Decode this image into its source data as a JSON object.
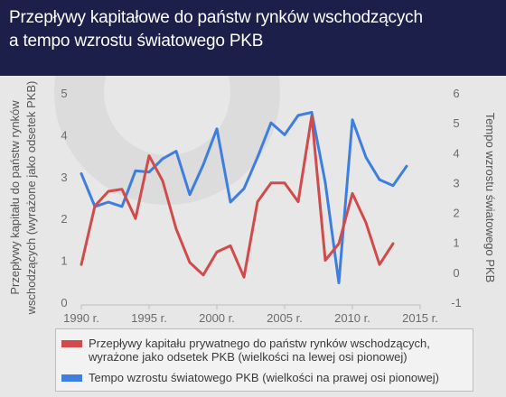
{
  "title": {
    "line1": "Przepływy kapitałowe do państw rynków wschodzących",
    "line2": "a tempo wzrostu światowego PKB"
  },
  "colors": {
    "header_bg": "#1b1f4a",
    "capital": "#d24b4b",
    "gdp": "#3d7ee0"
  },
  "chart_data": {
    "type": "line",
    "x": [
      1990,
      1991,
      1992,
      1993,
      1994,
      1995,
      1996,
      1997,
      1998,
      1999,
      2000,
      2001,
      2002,
      2003,
      2004,
      2005,
      2006,
      2007,
      2008,
      2009,
      2010,
      2011,
      2012,
      2013,
      2014
    ],
    "x_ticks": [
      1990,
      1995,
      2000,
      2005,
      2010,
      2015
    ],
    "x_tick_labels": [
      "1990 r.",
      "1995  r.",
      "2000 r.",
      "2005 r.",
      "2010 r.",
      "2015 r."
    ],
    "xlim": [
      1990,
      2015
    ],
    "left_axis": {
      "label": "Przepływy kapitału do państw rynków wschodzących (wyrażone jako odsetek PKB)",
      "ylim": [
        0,
        5
      ],
      "ticks": [
        "0",
        "1",
        "2",
        "3",
        "4",
        "5"
      ]
    },
    "right_axis": {
      "label": "Tempo wzrostu światowego PKB",
      "ylim": [
        -1,
        6
      ],
      "ticks": [
        "-1",
        "0",
        "1",
        "2",
        "3",
        "4",
        "5",
        "6"
      ]
    },
    "series": [
      {
        "name": "Przepływy kapitału prywatnego do państw rynków wschodzących, wyrażone jako odsetek PKB (wielkości na lewej osi pionowej)",
        "axis": "left",
        "color": "#d24b4b",
        "x": [
          1990,
          1991,
          1992,
          1993,
          1994,
          1995,
          1996,
          1997,
          1998,
          1999,
          2000,
          2001,
          2002,
          2003,
          2004,
          2005,
          2006,
          2007,
          2008,
          2009,
          2010,
          2011,
          2012,
          2013,
          2014
        ],
        "values": [
          0.9,
          2.3,
          2.65,
          2.7,
          2.0,
          3.5,
          2.9,
          1.75,
          0.95,
          0.65,
          1.2,
          1.35,
          0.6,
          2.4,
          2.85,
          2.85,
          2.4,
          4.45,
          1.0,
          1.4,
          2.6,
          1.9,
          0.9,
          1.4,
          null
        ]
      },
      {
        "name": "Tempo wzrostu światowego PKB (wielkości na prawej osi pionowej)",
        "axis": "right",
        "color": "#3d7ee0",
        "x": [
          1990,
          1991,
          1992,
          1993,
          1994,
          1995,
          1996,
          1997,
          1998,
          1999,
          2000,
          2001,
          2002,
          2003,
          2004,
          2005,
          2006,
          2007,
          2008,
          2009,
          2010,
          2011,
          2012,
          2013,
          2014
        ],
        "values": [
          3.3,
          2.2,
          2.35,
          2.2,
          3.4,
          3.35,
          3.8,
          4.05,
          2.6,
          3.6,
          4.8,
          2.35,
          2.8,
          3.85,
          5.0,
          4.6,
          5.25,
          5.35,
          3.0,
          -0.35,
          5.1,
          3.85,
          3.1,
          2.9,
          3.55
        ]
      }
    ],
    "grid": false,
    "legend_position": "bottom"
  }
}
